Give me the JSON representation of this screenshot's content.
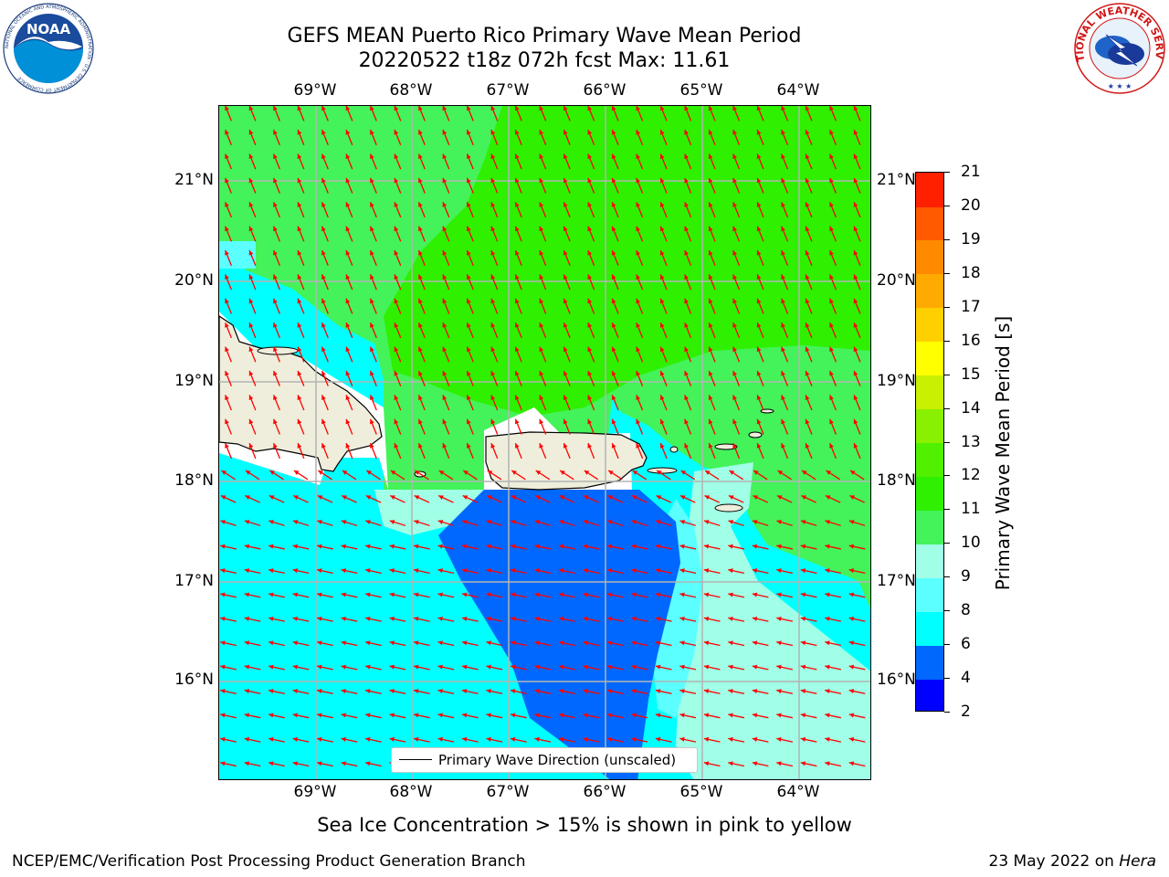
{
  "title": {
    "line1": "GEFS MEAN Puerto Rico Primary Wave Mean Period",
    "line2": "20220522 t18z 072h fcst   Max: 11.61"
  },
  "axes": {
    "lon_labels": [
      "69°W",
      "68°W",
      "67°W",
      "66°W",
      "65°W",
      "64°W"
    ],
    "lat_labels": [
      "21°N",
      "20°N",
      "19°N",
      "18°N",
      "17°N",
      "16°N"
    ],
    "gridlines": true
  },
  "legend": {
    "label": "Primary Wave Direction (unscaled)",
    "placement": "bottom-center"
  },
  "colorbar": {
    "label": "Primary Wave Mean Period [s]",
    "ticks": [
      "2",
      "4",
      "6",
      "8",
      "9",
      "10",
      "11",
      "12",
      "13",
      "14",
      "15",
      "16",
      "17",
      "18",
      "19",
      "20",
      "21"
    ],
    "colors": [
      "#0000ff",
      "#0068ff",
      "#00ffff",
      "#5cffff",
      "#a0ffe6",
      "#44f25a",
      "#2ef000",
      "#50f000",
      "#88f000",
      "#c8f000",
      "#ffff00",
      "#ffd000",
      "#ffaa00",
      "#ff8a00",
      "#ff5a00",
      "#ff2000"
    ]
  },
  "map_colors": {
    "land": "#efeedc",
    "arrows": "#ff0000",
    "period_4_6": "#0068ff",
    "period_6_8": "#00ffff",
    "period_8_9": "#5cffff",
    "period_9_10": "#a0ffe6",
    "period_10_11": "#44f25a",
    "period_11_12": "#2ef000"
  },
  "logos": {
    "noaa": {
      "text": "NOAA",
      "ring_text": "NATIONAL OCEANIC AND ATMOSPHERIC ADMINISTRATION · U.S. DEPARTMENT OF COMMERCE"
    },
    "nws": {
      "ring_text": "NATIONAL WEATHER SERVICE"
    }
  },
  "footer": {
    "note": "Sea Ice Concentration > 15% is shown in pink to yellow",
    "credit": "NCEP/EMC/Verification Post Processing Product Generation Branch",
    "date_prefix": "23 May 2022 on ",
    "host": "Hera"
  }
}
